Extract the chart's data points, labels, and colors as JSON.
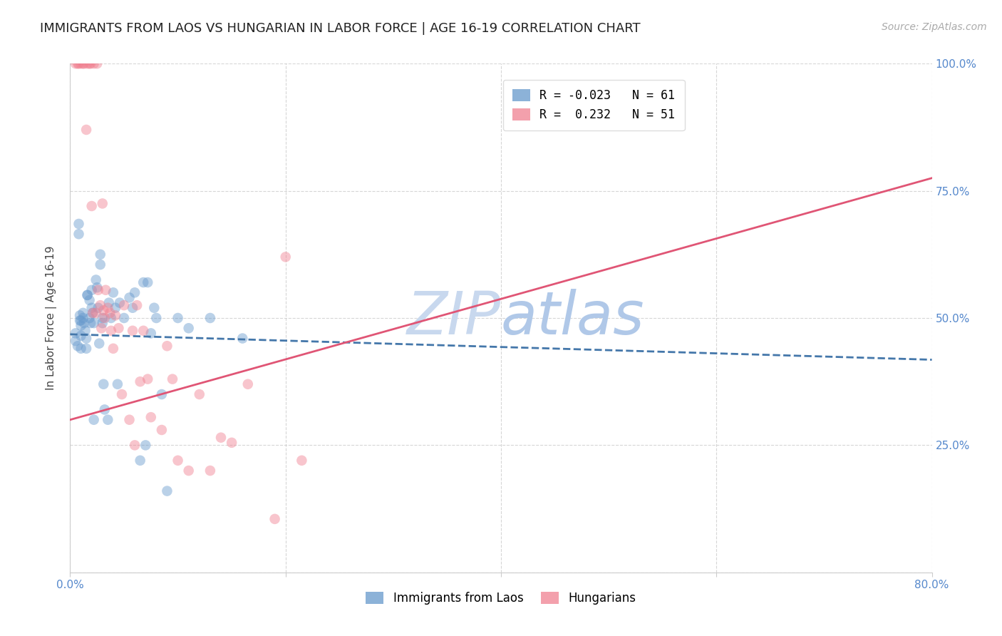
{
  "title": "IMMIGRANTS FROM LAOS VS HUNGARIAN IN LABOR FORCE | AGE 16-19 CORRELATION CHART",
  "source": "Source: ZipAtlas.com",
  "ylabel": "In Labor Force | Age 16-19",
  "xlim": [
    0.0,
    0.8
  ],
  "ylim": [
    0.0,
    1.0
  ],
  "x_ticks": [
    0.0,
    0.2,
    0.4,
    0.6,
    0.8
  ],
  "x_tick_labels": [
    "0.0%",
    "",
    "",
    "",
    "80.0%"
  ],
  "y_ticks": [
    0.0,
    0.25,
    0.5,
    0.75,
    1.0
  ],
  "y_tick_labels": [
    "",
    "25.0%",
    "50.0%",
    "75.0%",
    "100.0%"
  ],
  "watermark_zip": "ZIP",
  "watermark_atlas": "atlas",
  "blue_scatter_x": [
    0.005,
    0.005,
    0.007,
    0.008,
    0.008,
    0.009,
    0.009,
    0.01,
    0.01,
    0.01,
    0.01,
    0.012,
    0.012,
    0.013,
    0.014,
    0.015,
    0.015,
    0.016,
    0.016,
    0.018,
    0.018,
    0.019,
    0.02,
    0.02,
    0.021,
    0.022,
    0.022,
    0.024,
    0.025,
    0.026,
    0.027,
    0.028,
    0.028,
    0.03,
    0.03,
    0.031,
    0.032,
    0.035,
    0.036,
    0.038,
    0.04,
    0.042,
    0.044,
    0.046,
    0.05,
    0.055,
    0.058,
    0.06,
    0.065,
    0.068,
    0.07,
    0.072,
    0.075,
    0.078,
    0.08,
    0.085,
    0.09,
    0.1,
    0.11,
    0.13,
    0.16
  ],
  "blue_scatter_y": [
    0.455,
    0.47,
    0.445,
    0.685,
    0.665,
    0.505,
    0.495,
    0.485,
    0.465,
    0.495,
    0.44,
    0.51,
    0.5,
    0.49,
    0.475,
    0.46,
    0.44,
    0.545,
    0.545,
    0.535,
    0.5,
    0.49,
    0.555,
    0.52,
    0.51,
    0.49,
    0.3,
    0.575,
    0.56,
    0.52,
    0.45,
    0.625,
    0.605,
    0.5,
    0.49,
    0.37,
    0.32,
    0.3,
    0.53,
    0.5,
    0.55,
    0.52,
    0.37,
    0.53,
    0.5,
    0.54,
    0.52,
    0.55,
    0.22,
    0.57,
    0.25,
    0.57,
    0.47,
    0.52,
    0.5,
    0.35,
    0.16,
    0.5,
    0.48,
    0.5,
    0.46
  ],
  "pink_scatter_x": [
    0.005,
    0.007,
    0.008,
    0.01,
    0.012,
    0.013,
    0.015,
    0.016,
    0.018,
    0.019,
    0.02,
    0.021,
    0.022,
    0.024,
    0.025,
    0.026,
    0.028,
    0.029,
    0.03,
    0.031,
    0.032,
    0.033,
    0.035,
    0.037,
    0.038,
    0.04,
    0.042,
    0.045,
    0.048,
    0.05,
    0.055,
    0.058,
    0.06,
    0.062,
    0.065,
    0.068,
    0.072,
    0.075,
    0.085,
    0.09,
    0.095,
    0.1,
    0.11,
    0.12,
    0.13,
    0.14,
    0.15,
    0.165,
    0.19,
    0.2,
    0.215
  ],
  "pink_scatter_y": [
    1.0,
    1.0,
    1.0,
    1.0,
    1.0,
    1.0,
    0.87,
    1.0,
    1.0,
    1.0,
    0.72,
    0.51,
    1.0,
    0.51,
    1.0,
    0.555,
    0.525,
    0.48,
    0.725,
    0.515,
    0.5,
    0.555,
    0.52,
    0.51,
    0.475,
    0.44,
    0.505,
    0.48,
    0.35,
    0.525,
    0.3,
    0.475,
    0.25,
    0.525,
    0.375,
    0.475,
    0.38,
    0.305,
    0.28,
    0.445,
    0.38,
    0.22,
    0.2,
    0.35,
    0.2,
    0.265,
    0.255,
    0.37,
    0.105,
    0.62,
    0.22
  ],
  "blue_line_x": [
    0.0,
    0.8
  ],
  "blue_line_y": [
    0.468,
    0.418
  ],
  "pink_line_x": [
    0.0,
    0.8
  ],
  "pink_line_y": [
    0.3,
    0.775
  ],
  "blue_color": "#6699cc",
  "pink_color": "#f08090",
  "blue_line_color": "#4477aa",
  "pink_line_color": "#e05575",
  "grid_color": "#cccccc",
  "tick_color": "#5588cc",
  "background_color": "#ffffff",
  "title_fontsize": 13,
  "axis_label_fontsize": 11,
  "tick_fontsize": 11,
  "scatter_size": 110,
  "scatter_alpha": 0.45,
  "legend_r1": "R = -0.023",
  "legend_n1": "N = 61",
  "legend_r2": "R =  0.232",
  "legend_n2": "N = 51",
  "bottom_legend1": "Immigrants from Laos",
  "bottom_legend2": "Hungarians"
}
